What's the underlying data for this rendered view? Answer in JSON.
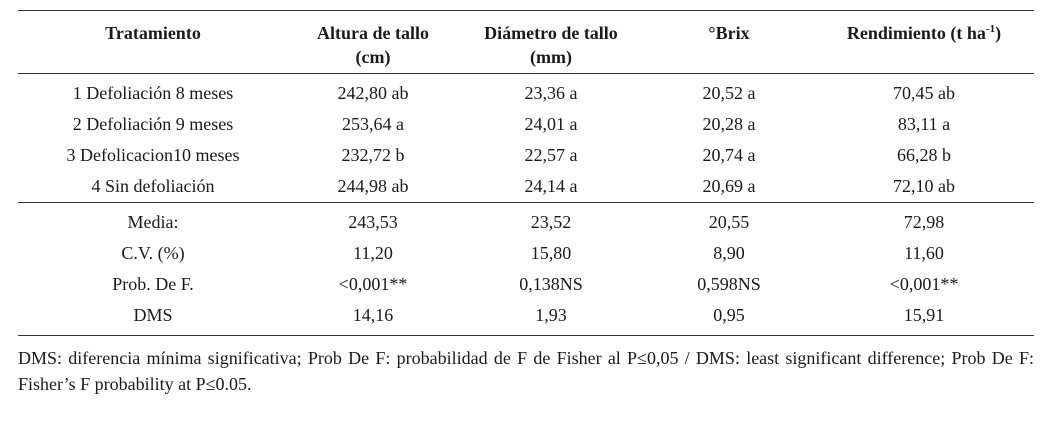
{
  "table": {
    "headers": [
      {
        "line1": "Tratamiento",
        "line2": ""
      },
      {
        "line1": "Altura de tallo",
        "line2": "(cm)"
      },
      {
        "line1": "Diámetro de tallo",
        "line2": "(mm)"
      },
      {
        "line1": "°Brix",
        "line2": ""
      },
      {
        "line1": "Rendimiento (t ha",
        "sup": "-1",
        "close": ")"
      }
    ],
    "rows": [
      [
        "1 Defoliación 8 meses",
        "242,80 ab",
        "23,36 a",
        "20,52 a",
        "70,45 ab"
      ],
      [
        "2 Defoliación 9 meses",
        "253,64 a",
        "24,01 a",
        "20,28 a",
        "83,11 a"
      ],
      [
        "3 Defolicacion10 meses",
        "232,72 b",
        "22,57 a",
        "20,74 a",
        "66,28 b"
      ],
      [
        "4 Sin defoliación",
        "244,98 ab",
        "24,14 a",
        "20,69 a",
        "72,10 ab"
      ]
    ],
    "stats": [
      [
        "Media:",
        "243,53",
        "23,52",
        "20,55",
        "72,98"
      ],
      [
        "C.V. (%)",
        "11,20",
        "15,80",
        "8,90",
        "11,60"
      ],
      [
        "Prob. De F.",
        "<0,001**",
        "0,138NS",
        "0,598NS",
        "<0,001**"
      ],
      [
        "DMS",
        "14,16",
        "1,93",
        "0,95",
        "15,91"
      ]
    ]
  },
  "footnote": "DMS: diferencia mínima significativa; Prob De F: probabilidad de F de Fisher al P≤0,05 / DMS: least significant difference; Prob De F: Fisher’s F probability at P≤0.05."
}
